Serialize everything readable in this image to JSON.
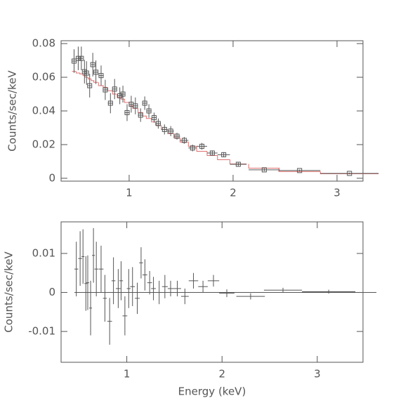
{
  "chart_data": [
    {
      "type": "spectrum",
      "ylabel": "Counts/sec/keV",
      "xlim": [
        0.345,
        3.25
      ],
      "xticks": [
        1,
        2,
        3
      ],
      "ylim": [
        -0.0017,
        0.0817
      ],
      "yticks": [
        0,
        0.02,
        0.04,
        0.06,
        0.08
      ],
      "x": [
        0.47,
        0.51,
        0.54,
        0.57,
        0.59,
        0.62,
        0.65,
        0.68,
        0.73,
        0.77,
        0.82,
        0.86,
        0.91,
        0.94,
        0.98,
        1.02,
        1.06,
        1.11,
        1.15,
        1.19,
        1.24,
        1.28,
        1.34,
        1.4,
        1.46,
        1.53,
        1.61,
        1.7,
        1.8,
        1.91,
        2.05,
        2.3,
        2.64,
        3.12
      ],
      "xerr": [
        0.02,
        0.02,
        0.015,
        0.015,
        0.015,
        0.015,
        0.015,
        0.02,
        0.025,
        0.02,
        0.025,
        0.02,
        0.025,
        0.02,
        0.025,
        0.02,
        0.025,
        0.025,
        0.02,
        0.025,
        0.025,
        0.025,
        0.03,
        0.03,
        0.03,
        0.04,
        0.04,
        0.05,
        0.05,
        0.06,
        0.08,
        0.15,
        0.2,
        0.28
      ],
      "values": [
        0.0696,
        0.0712,
        0.0712,
        0.0633,
        0.0625,
        0.055,
        0.0675,
        0.063,
        0.061,
        0.0525,
        0.0446,
        0.053,
        0.049,
        0.05,
        0.039,
        0.044,
        0.043,
        0.0375,
        0.0446,
        0.04,
        0.036,
        0.0325,
        0.029,
        0.028,
        0.025,
        0.0225,
        0.018,
        0.019,
        0.015,
        0.014,
        0.0083,
        0.005,
        0.0046,
        0.0029
      ],
      "yerr": [
        0.007,
        0.007,
        0.007,
        0.007,
        0.007,
        0.007,
        0.007,
        0.007,
        0.006,
        0.006,
        0.006,
        0.006,
        0.005,
        0.005,
        0.005,
        0.005,
        0.005,
        0.004,
        0.004,
        0.004,
        0.003,
        0.003,
        0.003,
        0.003,
        0.002,
        0.002,
        0.002,
        0.002,
        0.0015,
        0.0015,
        0.001,
        0.0008,
        0.0006,
        0.0005
      ],
      "color": "#555555",
      "model_values": [
        0.0635,
        0.0625,
        0.062,
        0.061,
        0.06,
        0.059,
        0.058,
        0.057,
        0.055,
        0.054,
        0.052,
        0.05,
        0.048,
        0.047,
        0.045,
        0.043,
        0.0415,
        0.039,
        0.037,
        0.0355,
        0.0335,
        0.0315,
        0.029,
        0.0265,
        0.024,
        0.0215,
        0.019,
        0.016,
        0.0135,
        0.011,
        0.0085,
        0.006,
        0.004,
        0.0027
      ],
      "model_color": "#e07070"
    },
    {
      "type": "residuals",
      "ylabel": "Counts/sec/keV",
      "xlabel": "Energy (keV)",
      "xlim": [
        0.31,
        3.48
      ],
      "xticks": [
        1,
        2,
        3
      ],
      "ylim": [
        -0.0179,
        0.0181
      ],
      "yticks": [
        -0.01,
        0,
        0.01
      ],
      "x": [
        0.47,
        0.51,
        0.54,
        0.57,
        0.59,
        0.62,
        0.65,
        0.68,
        0.73,
        0.77,
        0.82,
        0.86,
        0.91,
        0.94,
        0.98,
        1.02,
        1.06,
        1.11,
        1.15,
        1.19,
        1.24,
        1.28,
        1.34,
        1.4,
        1.46,
        1.53,
        1.61,
        1.7,
        1.8,
        1.91,
        2.05,
        2.3,
        2.64,
        3.12
      ],
      "xerr": [
        0.02,
        0.02,
        0.015,
        0.015,
        0.015,
        0.015,
        0.015,
        0.02,
        0.025,
        0.02,
        0.025,
        0.02,
        0.025,
        0.02,
        0.025,
        0.02,
        0.025,
        0.025,
        0.02,
        0.025,
        0.025,
        0.025,
        0.03,
        0.03,
        0.03,
        0.04,
        0.04,
        0.05,
        0.05,
        0.06,
        0.08,
        0.15,
        0.2,
        0.28
      ],
      "values": [
        0.006,
        0.0087,
        0.0092,
        0.0023,
        0.0025,
        -0.004,
        0.0095,
        0.006,
        0.006,
        -0.0015,
        -0.0074,
        0.003,
        0.001,
        0.003,
        -0.006,
        0.001,
        0.0015,
        -0.0015,
        0.0076,
        0.0045,
        0.0025,
        0.001,
        0,
        0.0015,
        0.001,
        0.001,
        -0.001,
        0.003,
        0.0015,
        0.003,
        -0.0002,
        -0.001,
        0.0006,
        0.0002
      ],
      "yerr": [
        0.007,
        0.007,
        0.007,
        0.007,
        0.007,
        0.007,
        0.007,
        0.007,
        0.006,
        0.006,
        0.006,
        0.006,
        0.005,
        0.005,
        0.005,
        0.005,
        0.005,
        0.004,
        0.004,
        0.004,
        0.003,
        0.003,
        0.003,
        0.003,
        0.002,
        0.002,
        0.002,
        0.002,
        0.0015,
        0.0015,
        0.001,
        0.0008,
        0.0006,
        0.0005
      ],
      "color": "#555555"
    }
  ]
}
